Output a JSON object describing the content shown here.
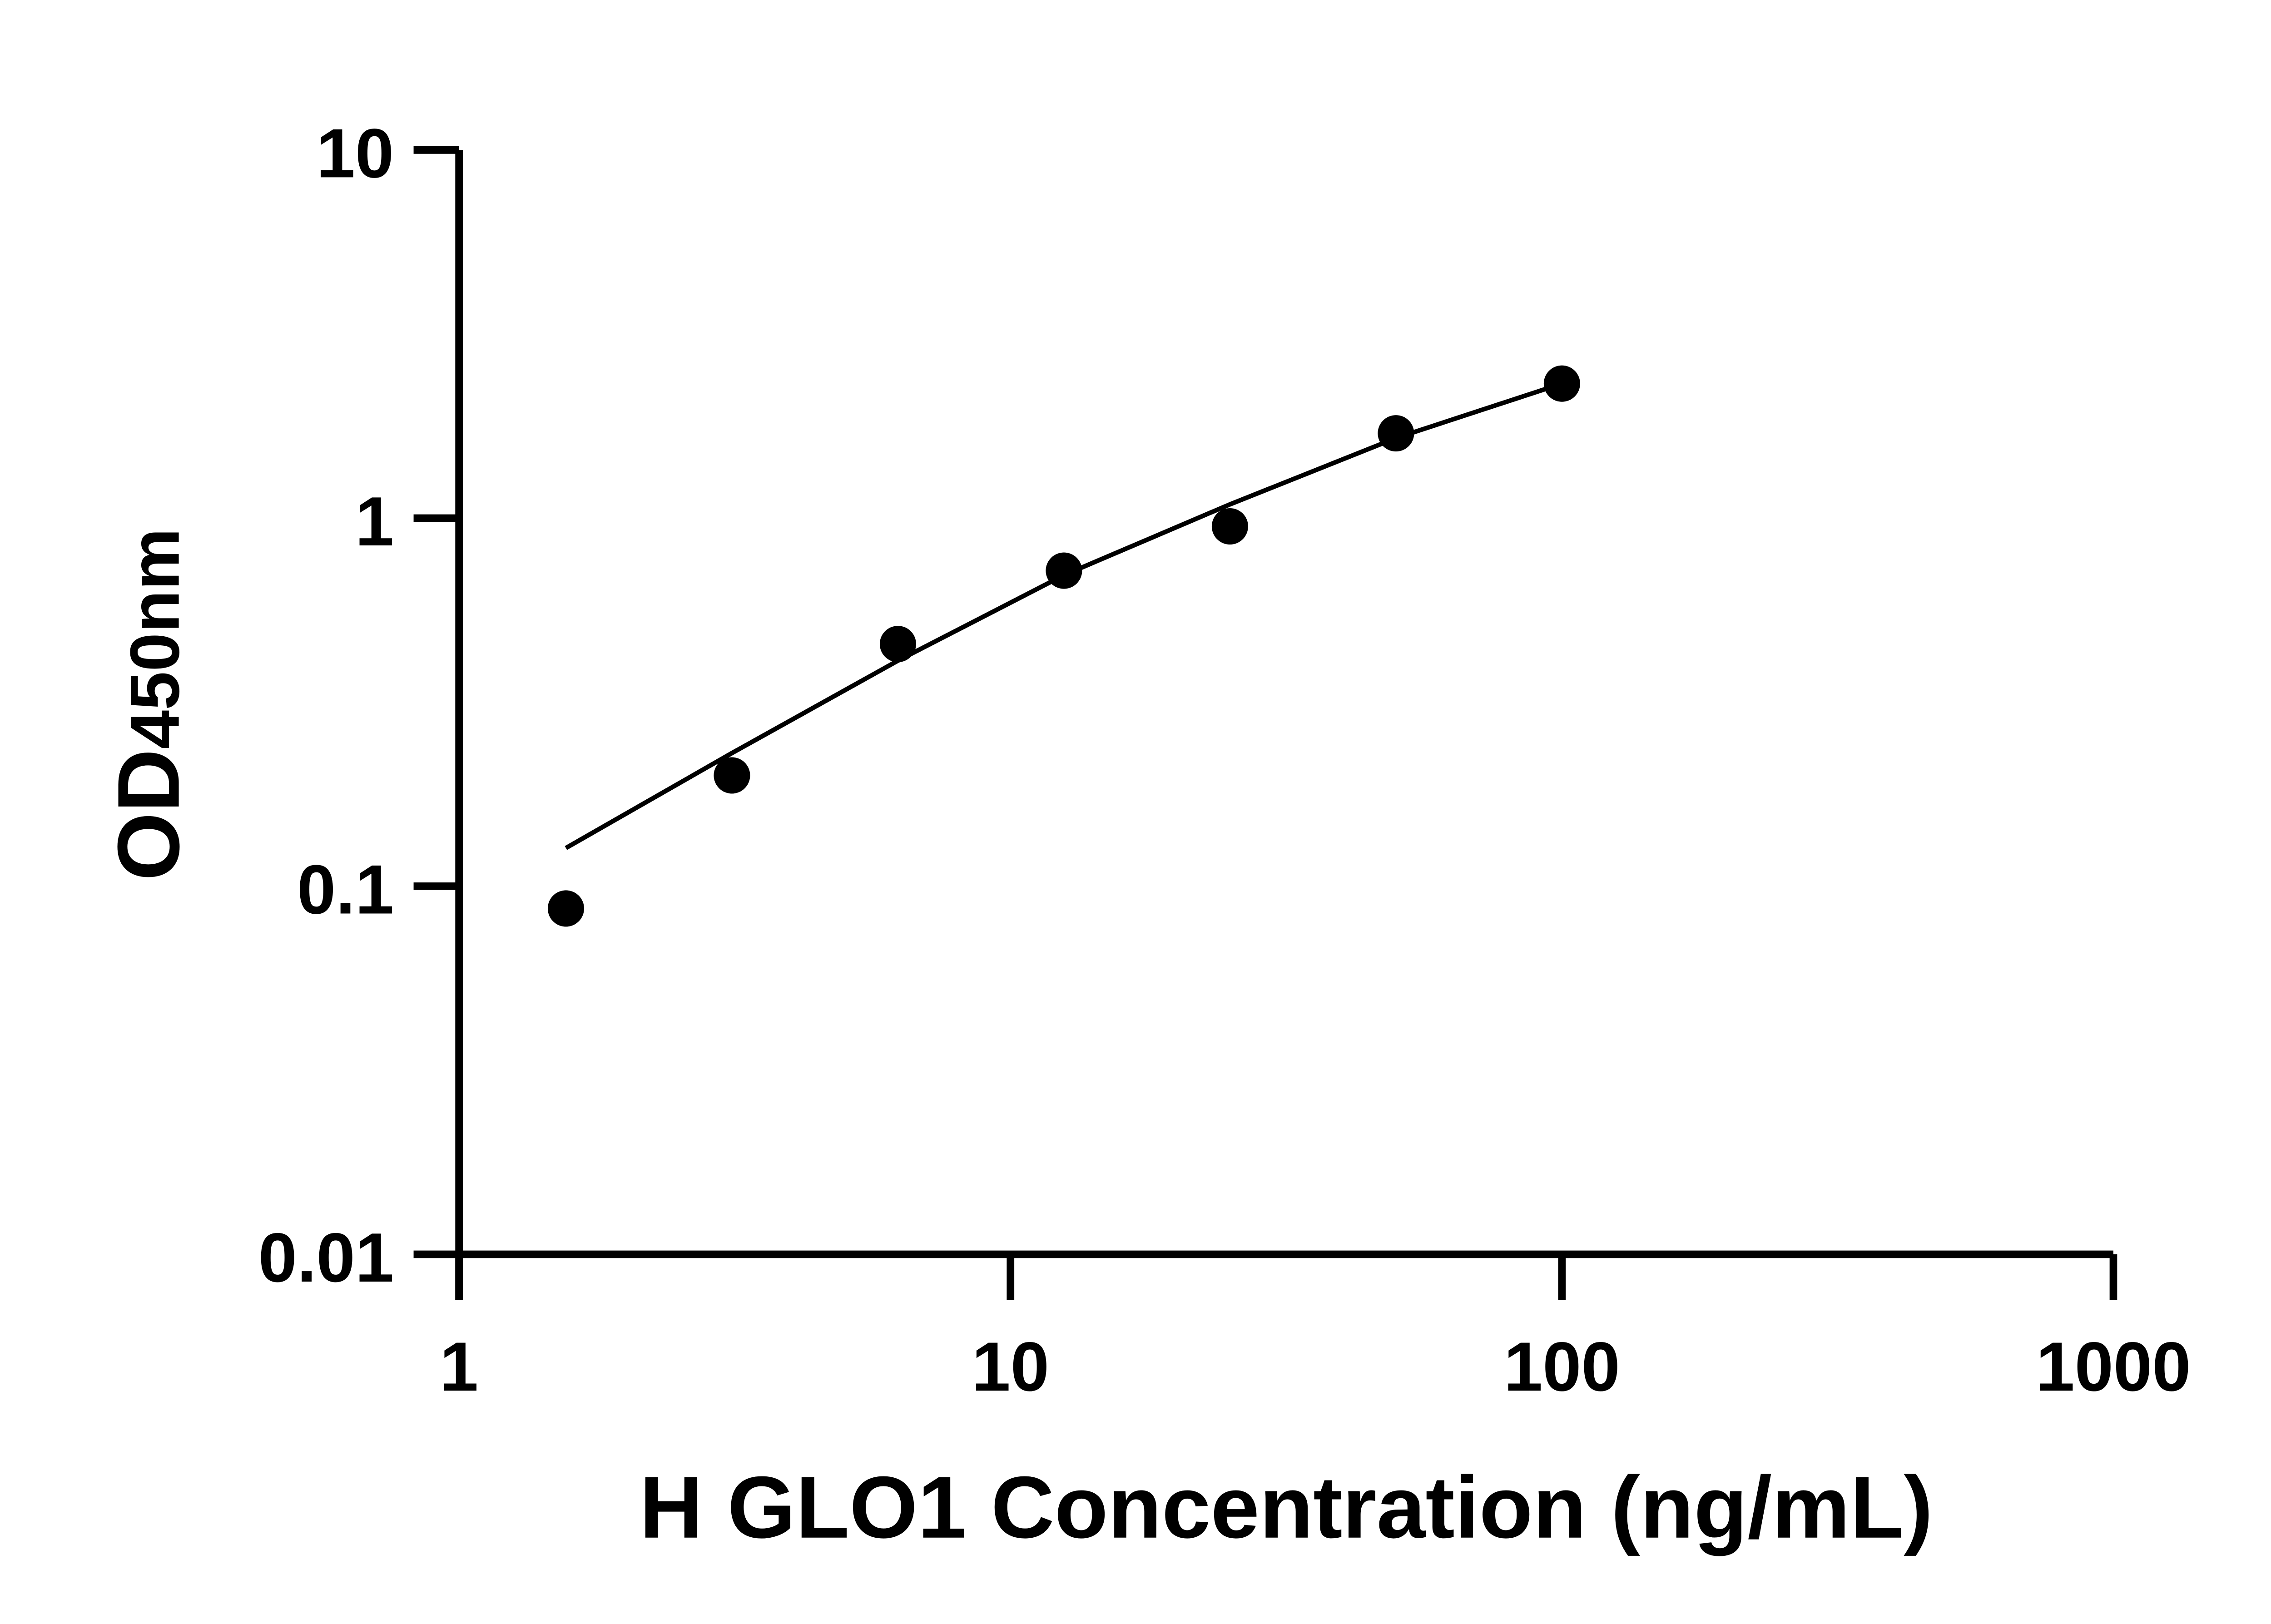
{
  "chart_data": {
    "type": "scatter",
    "title": "",
    "xlabel": "H GLO1 Concentration (ng/mL)",
    "ylabel_main": "OD",
    "ylabel_sub": "450nm",
    "x_scale": "log",
    "y_scale": "log",
    "xlim": [
      1,
      1000
    ],
    "ylim": [
      0.01,
      10
    ],
    "x_ticks": [
      "1",
      "10",
      "100",
      "1000"
    ],
    "y_ticks": [
      "0.01",
      "0.1",
      "1",
      "10"
    ],
    "grid": false,
    "legend": "none",
    "colors": {
      "points": "#000000",
      "curve": "#000000",
      "axes": "#000000"
    },
    "points": {
      "x": [
        1.5625,
        3.125,
        6.25,
        12.5,
        25,
        50,
        100
      ],
      "y": [
        0.087,
        0.2,
        0.455,
        0.72,
        0.95,
        1.7,
        2.32
      ]
    },
    "fit_curve": {
      "x": [
        1.5625,
        3.125,
        6.25,
        12.5,
        25,
        50,
        100
      ],
      "y": [
        0.127,
        0.23,
        0.41,
        0.7,
        1.09,
        1.65,
        2.32
      ]
    }
  }
}
